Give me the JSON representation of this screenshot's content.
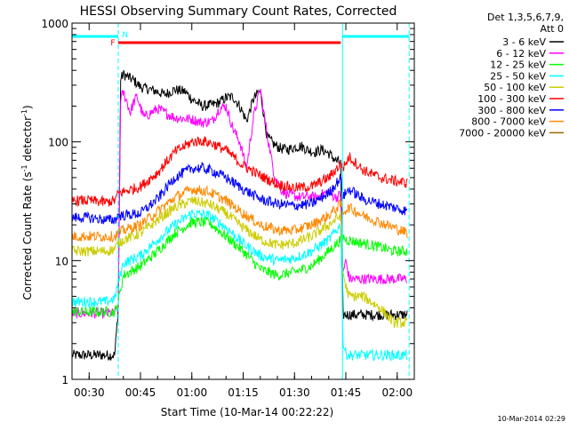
{
  "chart_data": {
    "type": "line",
    "title": "HESSI Observing Summary Count Rates, Corrected",
    "xlabel": "Start Time (10-Mar-14 00:22:22)",
    "ylabel_main": "Corrected Count Rate (s",
    "ylabel_sup1": "-1",
    "ylabel_mid": " detector",
    "ylabel_sup2": "-1",
    "ylabel_end": ")",
    "y_scale": "log",
    "ylim": [
      1,
      1000
    ],
    "xlim_minutes": [
      25,
      125
    ],
    "x_ticks": [
      {
        "minute": 30,
        "label": "00:30"
      },
      {
        "minute": 45,
        "label": "00:45"
      },
      {
        "minute": 60,
        "label": "01:00"
      },
      {
        "minute": 75,
        "label": "01:15"
      },
      {
        "minute": 90,
        "label": "01:30"
      },
      {
        "minute": 105,
        "label": "01:45"
      },
      {
        "minute": 120,
        "label": "02:00"
      }
    ],
    "y_ticks": [
      {
        "value": 1,
        "label": "1"
      },
      {
        "value": 10,
        "label": "10"
      },
      {
        "value": 100,
        "label": "100"
      },
      {
        "value": 1000,
        "label": "1000"
      }
    ],
    "legend_header": [
      "Det 1,3,5,6,7,9,",
      "Att 0"
    ],
    "legend_placement": "right",
    "footer_date": "10-Mar-2014 02:29",
    "flags": [
      {
        "label": "F",
        "color": "#ff0000",
        "start": 38.5,
        "end": 103.5
      },
      {
        "label": "N",
        "color": "#00ffff",
        "start": 39.5,
        "end": 39.5
      }
    ],
    "night_bars": [
      {
        "start": 25,
        "end": 38.5
      },
      {
        "start": 104,
        "end": 123.5
      }
    ],
    "night_lines": [
      38.5,
      104,
      123.5
    ],
    "series": [
      {
        "name": "3 - 6 keV",
        "color": "#000000",
        "x": [
          25,
          30,
          35,
          37.5,
          38.5,
          39.2,
          40,
          43,
          45,
          50,
          52,
          55,
          58,
          60,
          63,
          66,
          68,
          70,
          72,
          74,
          76,
          78,
          80,
          82,
          84,
          86,
          88,
          90,
          92,
          94,
          96,
          98,
          100,
          102,
          103.5,
          104.2,
          105,
          110,
          115,
          119,
          123
        ],
        "y": [
          1.6,
          1.6,
          1.6,
          1.6,
          4,
          340,
          370,
          330,
          290,
          265,
          250,
          275,
          265,
          230,
          200,
          205,
          215,
          235,
          240,
          200,
          150,
          230,
          270,
          110,
          95,
          88,
          86,
          90,
          92,
          85,
          82,
          86,
          80,
          70,
          66,
          3.5,
          3.5,
          3.5,
          3.5,
          3.5,
          3.5
        ]
      },
      {
        "name": "6 - 12 keV",
        "color": "#ff00ff",
        "x": [
          25,
          30,
          35,
          37.5,
          38.5,
          39.2,
          40,
          41,
          42,
          43,
          44,
          45,
          46,
          48,
          50,
          55,
          60,
          63,
          66,
          68,
          70,
          72,
          74,
          76,
          78,
          80,
          82,
          84,
          86,
          88,
          90,
          92,
          94,
          96,
          98,
          100,
          102,
          103.5,
          104.2,
          105,
          106,
          110,
          115,
          119,
          123
        ],
        "y": [
          3.6,
          3.6,
          3.6,
          3.6,
          4,
          230,
          260,
          220,
          175,
          215,
          240,
          195,
          160,
          175,
          190,
          160,
          155,
          145,
          150,
          190,
          200,
          130,
          100,
          60,
          160,
          280,
          115,
          55,
          40,
          36,
          35,
          34,
          35,
          34,
          36,
          38,
          34,
          36,
          8,
          10,
          7,
          7,
          7,
          7,
          7
        ]
      },
      {
        "name": "12 - 25 keV",
        "color": "#00ff00",
        "x": [
          25,
          30,
          35,
          37.5,
          38.5,
          40,
          45,
          50,
          55,
          60,
          65,
          70,
          75,
          80,
          85,
          90,
          95,
          100,
          103.5,
          104.2,
          105,
          110,
          115,
          119,
          123
        ],
        "y": [
          3.7,
          3.7,
          3.7,
          3.7,
          4.5,
          7.5,
          9,
          12,
          17,
          21,
          21,
          16,
          12,
          8.5,
          7.5,
          8.0,
          9.0,
          12,
          15,
          16,
          15,
          14,
          13,
          12,
          12
        ]
      },
      {
        "name": "25 - 50 keV",
        "color": "#00ffff",
        "x": [
          25,
          30,
          35,
          37.5,
          38.5,
          40,
          45,
          50,
          55,
          60,
          65,
          70,
          75,
          80,
          85,
          90,
          95,
          100,
          103.5,
          104.2,
          105,
          106,
          110,
          115,
          119,
          123
        ],
        "y": [
          4.5,
          4.5,
          4.5,
          4.8,
          6.5,
          9.5,
          11,
          15,
          20,
          25,
          24,
          19,
          14,
          11,
          10,
          10.5,
          12,
          15,
          20,
          2,
          1.65,
          1.6,
          1.6,
          1.6,
          1.6,
          1.6
        ]
      },
      {
        "name": "50 - 100 keV",
        "color": "#cccc00",
        "x": [
          25,
          30,
          35,
          37.5,
          38.5,
          40,
          45,
          50,
          55,
          60,
          65,
          70,
          75,
          80,
          85,
          90,
          95,
          100,
          103.5,
          104.2,
          105,
          106,
          110,
          115,
          119,
          123
        ],
        "y": [
          12,
          12,
          12,
          12.5,
          14,
          15,
          17,
          22,
          28,
          32,
          30,
          25,
          19,
          15,
          13.5,
          14,
          16,
          20,
          24,
          8,
          6,
          5,
          5,
          4,
          3,
          3
        ]
      },
      {
        "name": "100 - 300 keV",
        "color": "#ff0000",
        "x": [
          25,
          30,
          35,
          37.5,
          38.5,
          40,
          45,
          50,
          55,
          60,
          63,
          66,
          70,
          75,
          80,
          85,
          90,
          95,
          100,
          103.5,
          104.2,
          106,
          110,
          115,
          119,
          123
        ],
        "y": [
          32,
          32,
          31,
          32,
          37,
          38,
          42,
          55,
          82,
          100,
          102,
          97,
          85,
          63,
          52,
          44,
          41,
          42,
          50,
          65,
          60,
          75,
          58,
          50,
          47,
          45
        ]
      },
      {
        "name": "300 - 800 keV",
        "color": "#0000ff",
        "x": [
          25,
          30,
          35,
          37.5,
          38.5,
          40,
          45,
          50,
          55,
          60,
          63,
          66,
          70,
          75,
          80,
          85,
          90,
          95,
          100,
          103.5,
          104.2,
          106,
          110,
          115,
          119,
          123
        ],
        "y": [
          23,
          23,
          22,
          22,
          24,
          24,
          25,
          33,
          50,
          60,
          60,
          57,
          50,
          40,
          33,
          30,
          29,
          30,
          37,
          50,
          35,
          40,
          33,
          30,
          28,
          26
        ]
      },
      {
        "name": "800 - 7000 keV",
        "color": "#ff8800",
        "x": [
          25,
          30,
          35,
          37.5,
          38.5,
          40,
          45,
          50,
          55,
          60,
          65,
          70,
          75,
          80,
          85,
          90,
          95,
          100,
          103.5,
          104.2,
          106,
          110,
          115,
          119,
          123
        ],
        "y": [
          16,
          16,
          16,
          16,
          17,
          18,
          20,
          26,
          34,
          40,
          38,
          32,
          25,
          20,
          18,
          18,
          20,
          24,
          30,
          26,
          28,
          24,
          21,
          19,
          17
        ]
      },
      {
        "name": "7000 - 20000 keV",
        "color": "#996600",
        "x": [
          25,
          123
        ],
        "y": [
          1,
          1
        ]
      }
    ]
  }
}
